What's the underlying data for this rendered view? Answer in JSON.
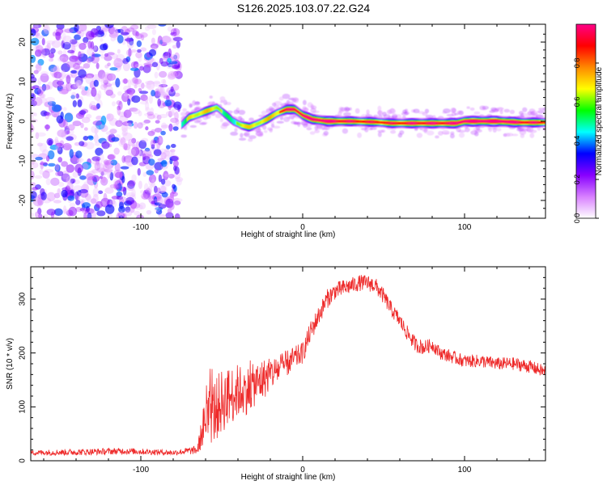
{
  "title": "S126.2025.103.07.22.G24",
  "chart_data": [
    {
      "type": "heatmap",
      "xlabel": "Height of straight line (km)",
      "ylabel": "Frequency (Hz)",
      "xlim": [
        -168,
        150
      ],
      "ylim": [
        -24.5,
        24.5
      ],
      "xticks": [
        -100,
        0,
        100
      ],
      "yticks": [
        -20,
        -10,
        0,
        10,
        20
      ],
      "noise_region_x": [
        -168,
        -76
      ],
      "ridge": [
        {
          "x": -75,
          "y": -1.0,
          "a": 0.45
        },
        {
          "x": -70,
          "y": 1.0,
          "a": 0.55
        },
        {
          "x": -66,
          "y": 1.5,
          "a": 0.6
        },
        {
          "x": -60,
          "y": 2.5,
          "a": 0.6
        },
        {
          "x": -53,
          "y": 3.5,
          "a": 0.55
        },
        {
          "x": -47,
          "y": 1.5,
          "a": 0.5
        },
        {
          "x": -43,
          "y": 0.0,
          "a": 0.5
        },
        {
          "x": -38,
          "y": -1.0,
          "a": 0.55
        },
        {
          "x": -33,
          "y": -1.5,
          "a": 0.55
        },
        {
          "x": -27,
          "y": -0.5,
          "a": 0.6
        },
        {
          "x": -22,
          "y": 0.5,
          "a": 0.6
        },
        {
          "x": -16,
          "y": 2.0,
          "a": 0.65
        },
        {
          "x": -10,
          "y": 3.0,
          "a": 0.75
        },
        {
          "x": -5,
          "y": 3.0,
          "a": 0.8
        },
        {
          "x": 0,
          "y": 1.5,
          "a": 0.85
        },
        {
          "x": 6,
          "y": 0.5,
          "a": 0.85
        },
        {
          "x": 15,
          "y": 0.0,
          "a": 0.9
        },
        {
          "x": 30,
          "y": 0.0,
          "a": 0.75
        },
        {
          "x": 45,
          "y": -0.2,
          "a": 0.7
        },
        {
          "x": 55,
          "y": -0.5,
          "a": 0.7
        },
        {
          "x": 70,
          "y": -0.5,
          "a": 0.8
        },
        {
          "x": 85,
          "y": -0.5,
          "a": 0.8
        },
        {
          "x": 95,
          "y": -0.5,
          "a": 0.85
        },
        {
          "x": 100,
          "y": 0.0,
          "a": 0.9
        },
        {
          "x": 120,
          "y": 0.0,
          "a": 0.95
        },
        {
          "x": 135,
          "y": -0.3,
          "a": 0.8
        },
        {
          "x": 150,
          "y": -0.3,
          "a": 0.7
        }
      ],
      "colorbar": {
        "label": "Normalized spectral amplitude",
        "range": [
          0.0,
          1.0
        ],
        "ticks": [
          0.0,
          0.2,
          0.4,
          0.6,
          0.8
        ],
        "colors": [
          "#ffffff",
          "#d880ff",
          "#8800ff",
          "#0000ff",
          "#00ffff",
          "#00ff00",
          "#ffff00",
          "#ff8800",
          "#ff0000",
          "#ff0088"
        ]
      }
    },
    {
      "type": "line",
      "xlabel": "Height of straight line (km)",
      "ylabel": "SNR (10 * v/v)",
      "xlim": [
        -168,
        150
      ],
      "ylim": [
        0,
        360
      ],
      "xticks": [
        -100,
        0,
        100
      ],
      "yticks": [
        0,
        100,
        200,
        300
      ],
      "color": "#ee2a2a",
      "series": [
        {
          "x": [
            -168,
            -140,
            -110,
            -80,
            -65,
            -60,
            -55,
            -50,
            -45,
            -40,
            -35,
            -30,
            -25,
            -20,
            -15,
            -10,
            -5,
            0,
            5,
            10,
            15,
            20,
            25,
            30,
            35,
            40,
            45,
            50,
            55,
            60,
            65,
            70,
            75,
            80,
            85,
            90,
            95,
            100,
            110,
            120,
            130,
            140,
            150
          ],
          "y": [
            15,
            16,
            18,
            15,
            20,
            80,
            90,
            110,
            120,
            130,
            130,
            140,
            150,
            160,
            170,
            180,
            190,
            200,
            240,
            270,
            300,
            315,
            320,
            325,
            330,
            330,
            325,
            305,
            280,
            260,
            235,
            215,
            210,
            215,
            200,
            195,
            190,
            185,
            185,
            180,
            180,
            175,
            165
          ],
          "noise": [
            5,
            6,
            6,
            5,
            8,
            50,
            60,
            60,
            55,
            50,
            45,
            40,
            40,
            30,
            28,
            25,
            22,
            20,
            20,
            18,
            18,
            16,
            16,
            15,
            15,
            15,
            15,
            15,
            14,
            14,
            14,
            14,
            14,
            12,
            12,
            12,
            12,
            12,
            12,
            12,
            12,
            12,
            12
          ]
        }
      ]
    }
  ]
}
